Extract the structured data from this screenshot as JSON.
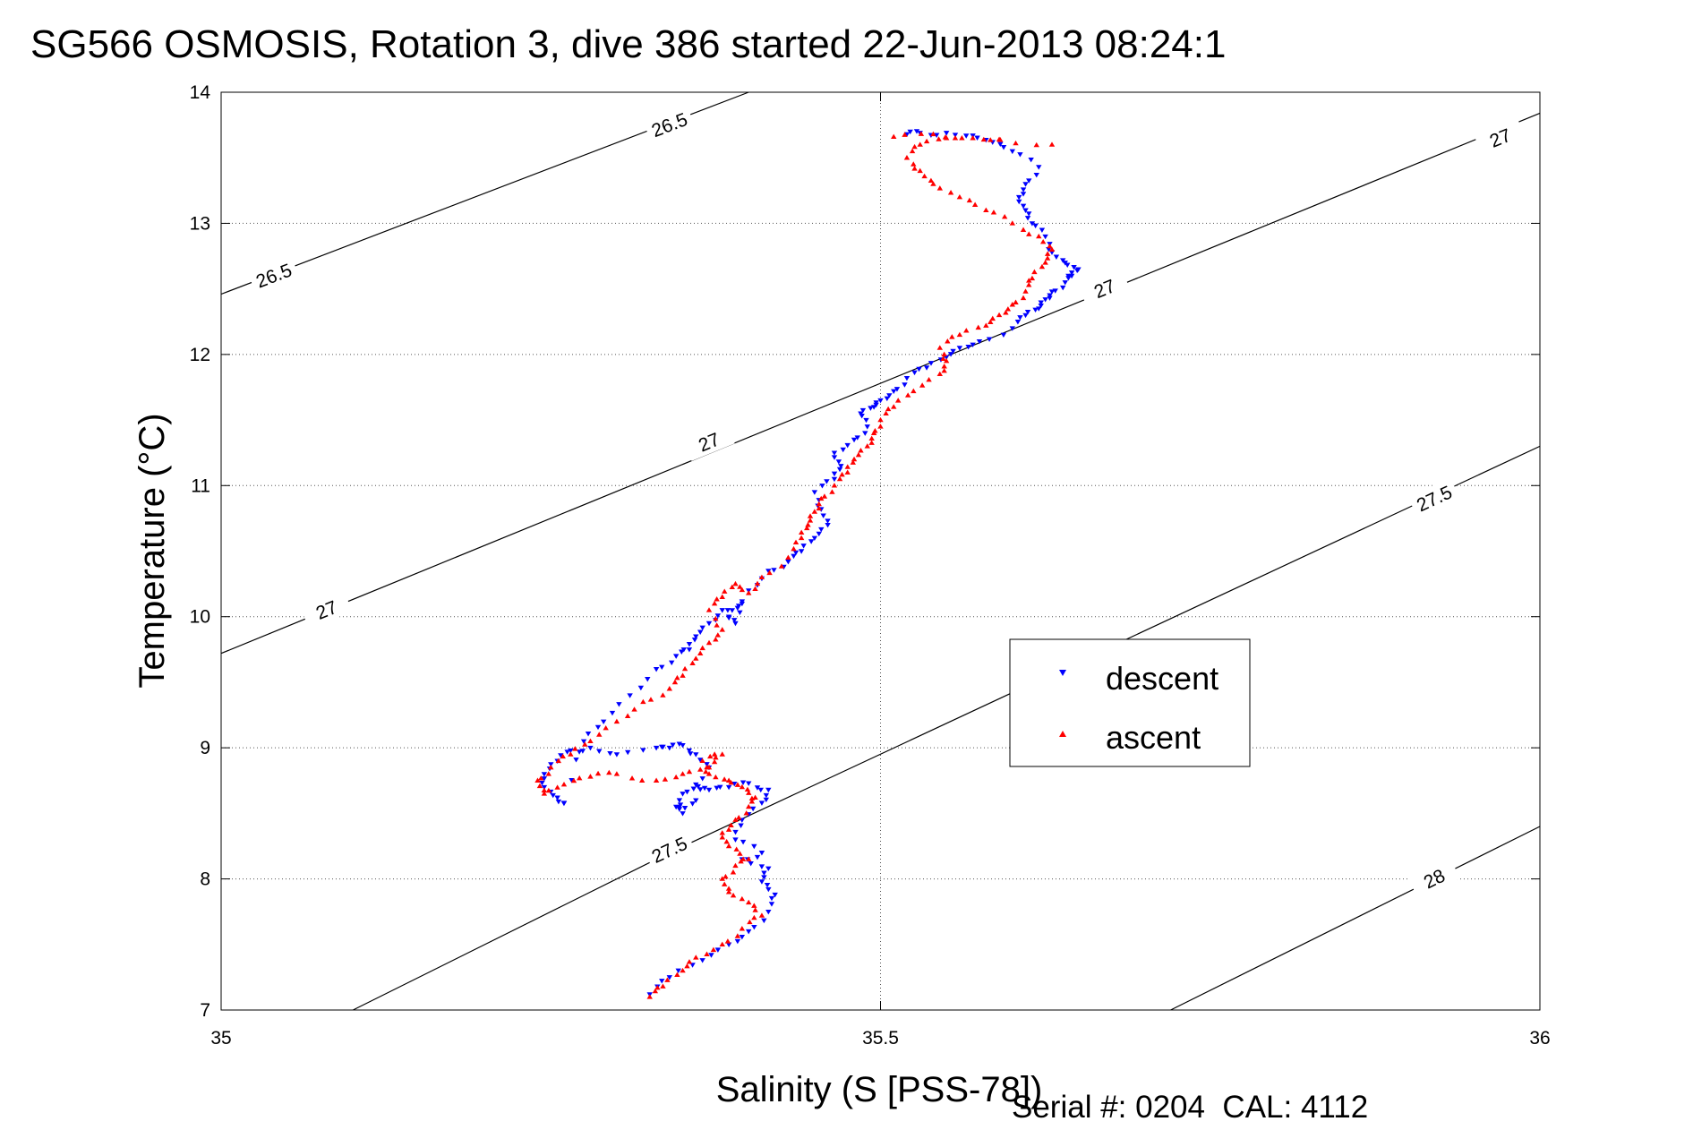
{
  "chart_data": {
    "type": "scatter",
    "title": "SG566 OSMOSIS, Rotation 3, dive 386 started 22-Jun-2013 08:24:1",
    "xlabel": "Salinity (S [PSS-78])",
    "ylabel": "Temperature (°C)",
    "footer": "Serial #: 0204  CAL: 4112",
    "xlim": [
      35,
      36
    ],
    "ylim": [
      7,
      14
    ],
    "x_ticks": [
      35,
      35.5,
      36
    ],
    "y_ticks": [
      7,
      8,
      9,
      10,
      11,
      12,
      13,
      14
    ],
    "x_tick_labels": [
      "35",
      "35.5",
      "36"
    ],
    "y_tick_labels": [
      "7",
      "8",
      "9",
      "10",
      "11",
      "12",
      "13",
      "14"
    ],
    "grid": true,
    "legend_position": "right-center",
    "colors": {
      "descent": "#0000ff",
      "ascent": "#ff0000",
      "contour": "#000000"
    },
    "contours": [
      {
        "label": "26.5",
        "label_positions": [
          [
            35.04,
            12.6
          ],
          [
            35.34,
            13.75
          ]
        ],
        "points": [
          [
            35.0,
            12.46
          ],
          [
            35.4,
            14.0
          ]
        ]
      },
      {
        "label": "27",
        "label_positions": [
          [
            35.08,
            10.05
          ],
          [
            35.37,
            11.33
          ],
          [
            35.67,
            12.5
          ],
          [
            35.97,
            13.65
          ]
        ],
        "points": [
          [
            35.0,
            9.72
          ],
          [
            36.0,
            13.84
          ]
        ]
      },
      {
        "label": "27.5",
        "label_positions": [
          [
            35.34,
            8.22
          ],
          [
            35.92,
            10.9
          ]
        ],
        "points": [
          [
            35.1,
            7.0
          ],
          [
            35.34,
            8.2
          ],
          [
            36.0,
            11.3
          ]
        ]
      },
      {
        "label": "28",
        "label_positions": [
          [
            35.92,
            8.0
          ]
        ],
        "points": [
          [
            35.72,
            7.0
          ],
          [
            36.0,
            8.4
          ]
        ]
      }
    ],
    "series": [
      {
        "name": "descent",
        "marker": "down-triangle",
        "points": [
          [
            35.325,
            7.12
          ],
          [
            35.34,
            7.25
          ],
          [
            35.365,
            7.38
          ],
          [
            35.385,
            7.5
          ],
          [
            35.4,
            7.6
          ],
          [
            35.415,
            7.75
          ],
          [
            35.42,
            7.88
          ],
          [
            35.41,
            7.98
          ],
          [
            35.415,
            8.08
          ],
          [
            35.395,
            8.15
          ],
          [
            35.41,
            8.2
          ],
          [
            35.39,
            8.3
          ],
          [
            35.395,
            8.45
          ],
          [
            35.41,
            8.58
          ],
          [
            35.415,
            8.68
          ],
          [
            35.4,
            8.73
          ],
          [
            35.385,
            8.7
          ],
          [
            35.37,
            8.68
          ],
          [
            35.36,
            8.72
          ],
          [
            35.35,
            8.65
          ],
          [
            35.345,
            8.55
          ],
          [
            35.35,
            8.5
          ],
          [
            35.36,
            8.6
          ],
          [
            35.37,
            8.85
          ],
          [
            35.36,
            8.95
          ],
          [
            35.35,
            9.02
          ],
          [
            35.34,
            9.0
          ],
          [
            35.33,
            9.0
          ],
          [
            35.3,
            8.95
          ],
          [
            35.28,
            9.0
          ],
          [
            35.265,
            8.98
          ],
          [
            35.255,
            8.9
          ],
          [
            35.245,
            8.8
          ],
          [
            35.245,
            8.7
          ],
          [
            35.255,
            8.62
          ],
          [
            35.26,
            8.58
          ],
          [
            35.275,
            9.05
          ],
          [
            35.29,
            9.2
          ],
          [
            35.31,
            9.4
          ],
          [
            35.33,
            9.6
          ],
          [
            35.345,
            9.7
          ],
          [
            35.355,
            9.75
          ],
          [
            35.36,
            9.85
          ],
          [
            35.37,
            9.95
          ],
          [
            35.38,
            10.05
          ],
          [
            35.395,
            10.1
          ],
          [
            35.385,
            10.0
          ],
          [
            35.39,
            9.95
          ],
          [
            35.4,
            10.2
          ],
          [
            35.415,
            10.35
          ],
          [
            35.43,
            10.42
          ],
          [
            35.44,
            10.5
          ],
          [
            35.45,
            10.6
          ],
          [
            35.46,
            10.7
          ],
          [
            35.455,
            10.82
          ],
          [
            35.45,
            10.95
          ],
          [
            35.465,
            11.05
          ],
          [
            35.47,
            11.15
          ],
          [
            35.465,
            11.25
          ],
          [
            35.48,
            11.35
          ],
          [
            35.49,
            11.45
          ],
          [
            35.485,
            11.55
          ],
          [
            35.495,
            11.6
          ],
          [
            35.5,
            11.65
          ],
          [
            35.51,
            11.72
          ],
          [
            35.52,
            11.82
          ],
          [
            35.535,
            11.9
          ],
          [
            35.55,
            11.98
          ],
          [
            35.56,
            12.05
          ],
          [
            35.575,
            12.1
          ],
          [
            35.6,
            12.2
          ],
          [
            35.61,
            12.3
          ],
          [
            35.62,
            12.35
          ],
          [
            35.625,
            12.42
          ],
          [
            35.63,
            12.48
          ],
          [
            35.64,
            12.55
          ],
          [
            35.645,
            12.6
          ],
          [
            35.65,
            12.65
          ],
          [
            35.64,
            12.7
          ],
          [
            35.63,
            12.78
          ],
          [
            35.625,
            12.9
          ],
          [
            35.615,
            13.0
          ],
          [
            35.61,
            13.1
          ],
          [
            35.605,
            13.2
          ],
          [
            35.61,
            13.3
          ],
          [
            35.62,
            13.43
          ],
          [
            35.6,
            13.55
          ],
          [
            35.585,
            13.62
          ],
          [
            35.57,
            13.67
          ],
          [
            35.55,
            13.69
          ],
          [
            35.53,
            13.69
          ],
          [
            35.52,
            13.68
          ]
        ]
      },
      {
        "name": "ascent",
        "marker": "up-triangle",
        "points": [
          [
            35.325,
            7.1
          ],
          [
            35.335,
            7.18
          ],
          [
            35.35,
            7.3
          ],
          [
            35.36,
            7.4
          ],
          [
            35.38,
            7.5
          ],
          [
            35.395,
            7.62
          ],
          [
            35.41,
            7.72
          ],
          [
            35.4,
            7.82
          ],
          [
            35.385,
            7.9
          ],
          [
            35.38,
            8.0
          ],
          [
            35.39,
            8.1
          ],
          [
            35.4,
            8.15
          ],
          [
            35.385,
            8.25
          ],
          [
            35.38,
            8.35
          ],
          [
            35.39,
            8.45
          ],
          [
            35.4,
            8.55
          ],
          [
            35.405,
            8.62
          ],
          [
            35.395,
            8.7
          ],
          [
            35.385,
            8.75
          ],
          [
            35.37,
            8.8
          ],
          [
            35.365,
            8.9
          ],
          [
            35.38,
            8.95
          ],
          [
            35.37,
            8.85
          ],
          [
            35.35,
            8.8
          ],
          [
            35.33,
            8.75
          ],
          [
            35.3,
            8.8
          ],
          [
            35.28,
            8.78
          ],
          [
            35.26,
            8.72
          ],
          [
            35.245,
            8.65
          ],
          [
            35.24,
            8.75
          ],
          [
            35.25,
            8.85
          ],
          [
            35.265,
            8.95
          ],
          [
            35.28,
            9.05
          ],
          [
            35.3,
            9.2
          ],
          [
            35.32,
            9.35
          ],
          [
            35.34,
            9.45
          ],
          [
            35.35,
            9.55
          ],
          [
            35.36,
            9.68
          ],
          [
            35.37,
            9.8
          ],
          [
            35.38,
            9.9
          ],
          [
            35.37,
            10.05
          ],
          [
            35.38,
            10.15
          ],
          [
            35.39,
            10.25
          ],
          [
            35.4,
            10.18
          ],
          [
            35.41,
            10.3
          ],
          [
            35.43,
            10.45
          ],
          [
            35.44,
            10.6
          ],
          [
            35.445,
            10.7
          ],
          [
            35.45,
            10.8
          ],
          [
            35.455,
            10.9
          ],
          [
            35.465,
            11.0
          ],
          [
            35.475,
            11.1
          ],
          [
            35.48,
            11.2
          ],
          [
            35.49,
            11.3
          ],
          [
            35.495,
            11.4
          ],
          [
            35.5,
            11.5
          ],
          [
            35.51,
            11.6
          ],
          [
            35.525,
            11.72
          ],
          [
            35.545,
            11.85
          ],
          [
            35.55,
            11.95
          ],
          [
            35.545,
            12.05
          ],
          [
            35.56,
            12.15
          ],
          [
            35.58,
            12.22
          ],
          [
            35.59,
            12.3
          ],
          [
            35.6,
            12.38
          ],
          [
            35.61,
            12.48
          ],
          [
            35.615,
            12.58
          ],
          [
            35.625,
            12.7
          ],
          [
            35.63,
            12.8
          ],
          [
            35.62,
            12.9
          ],
          [
            35.6,
            13.0
          ],
          [
            35.58,
            13.1
          ],
          [
            35.56,
            13.2
          ],
          [
            35.54,
            13.3
          ],
          [
            35.53,
            13.4
          ],
          [
            35.52,
            13.5
          ],
          [
            35.53,
            13.6
          ],
          [
            35.55,
            13.65
          ],
          [
            35.57,
            13.65
          ],
          [
            35.59,
            13.64
          ],
          [
            35.63,
            13.6
          ],
          [
            35.51,
            13.66
          ],
          [
            35.54,
            13.68
          ]
        ]
      }
    ]
  }
}
